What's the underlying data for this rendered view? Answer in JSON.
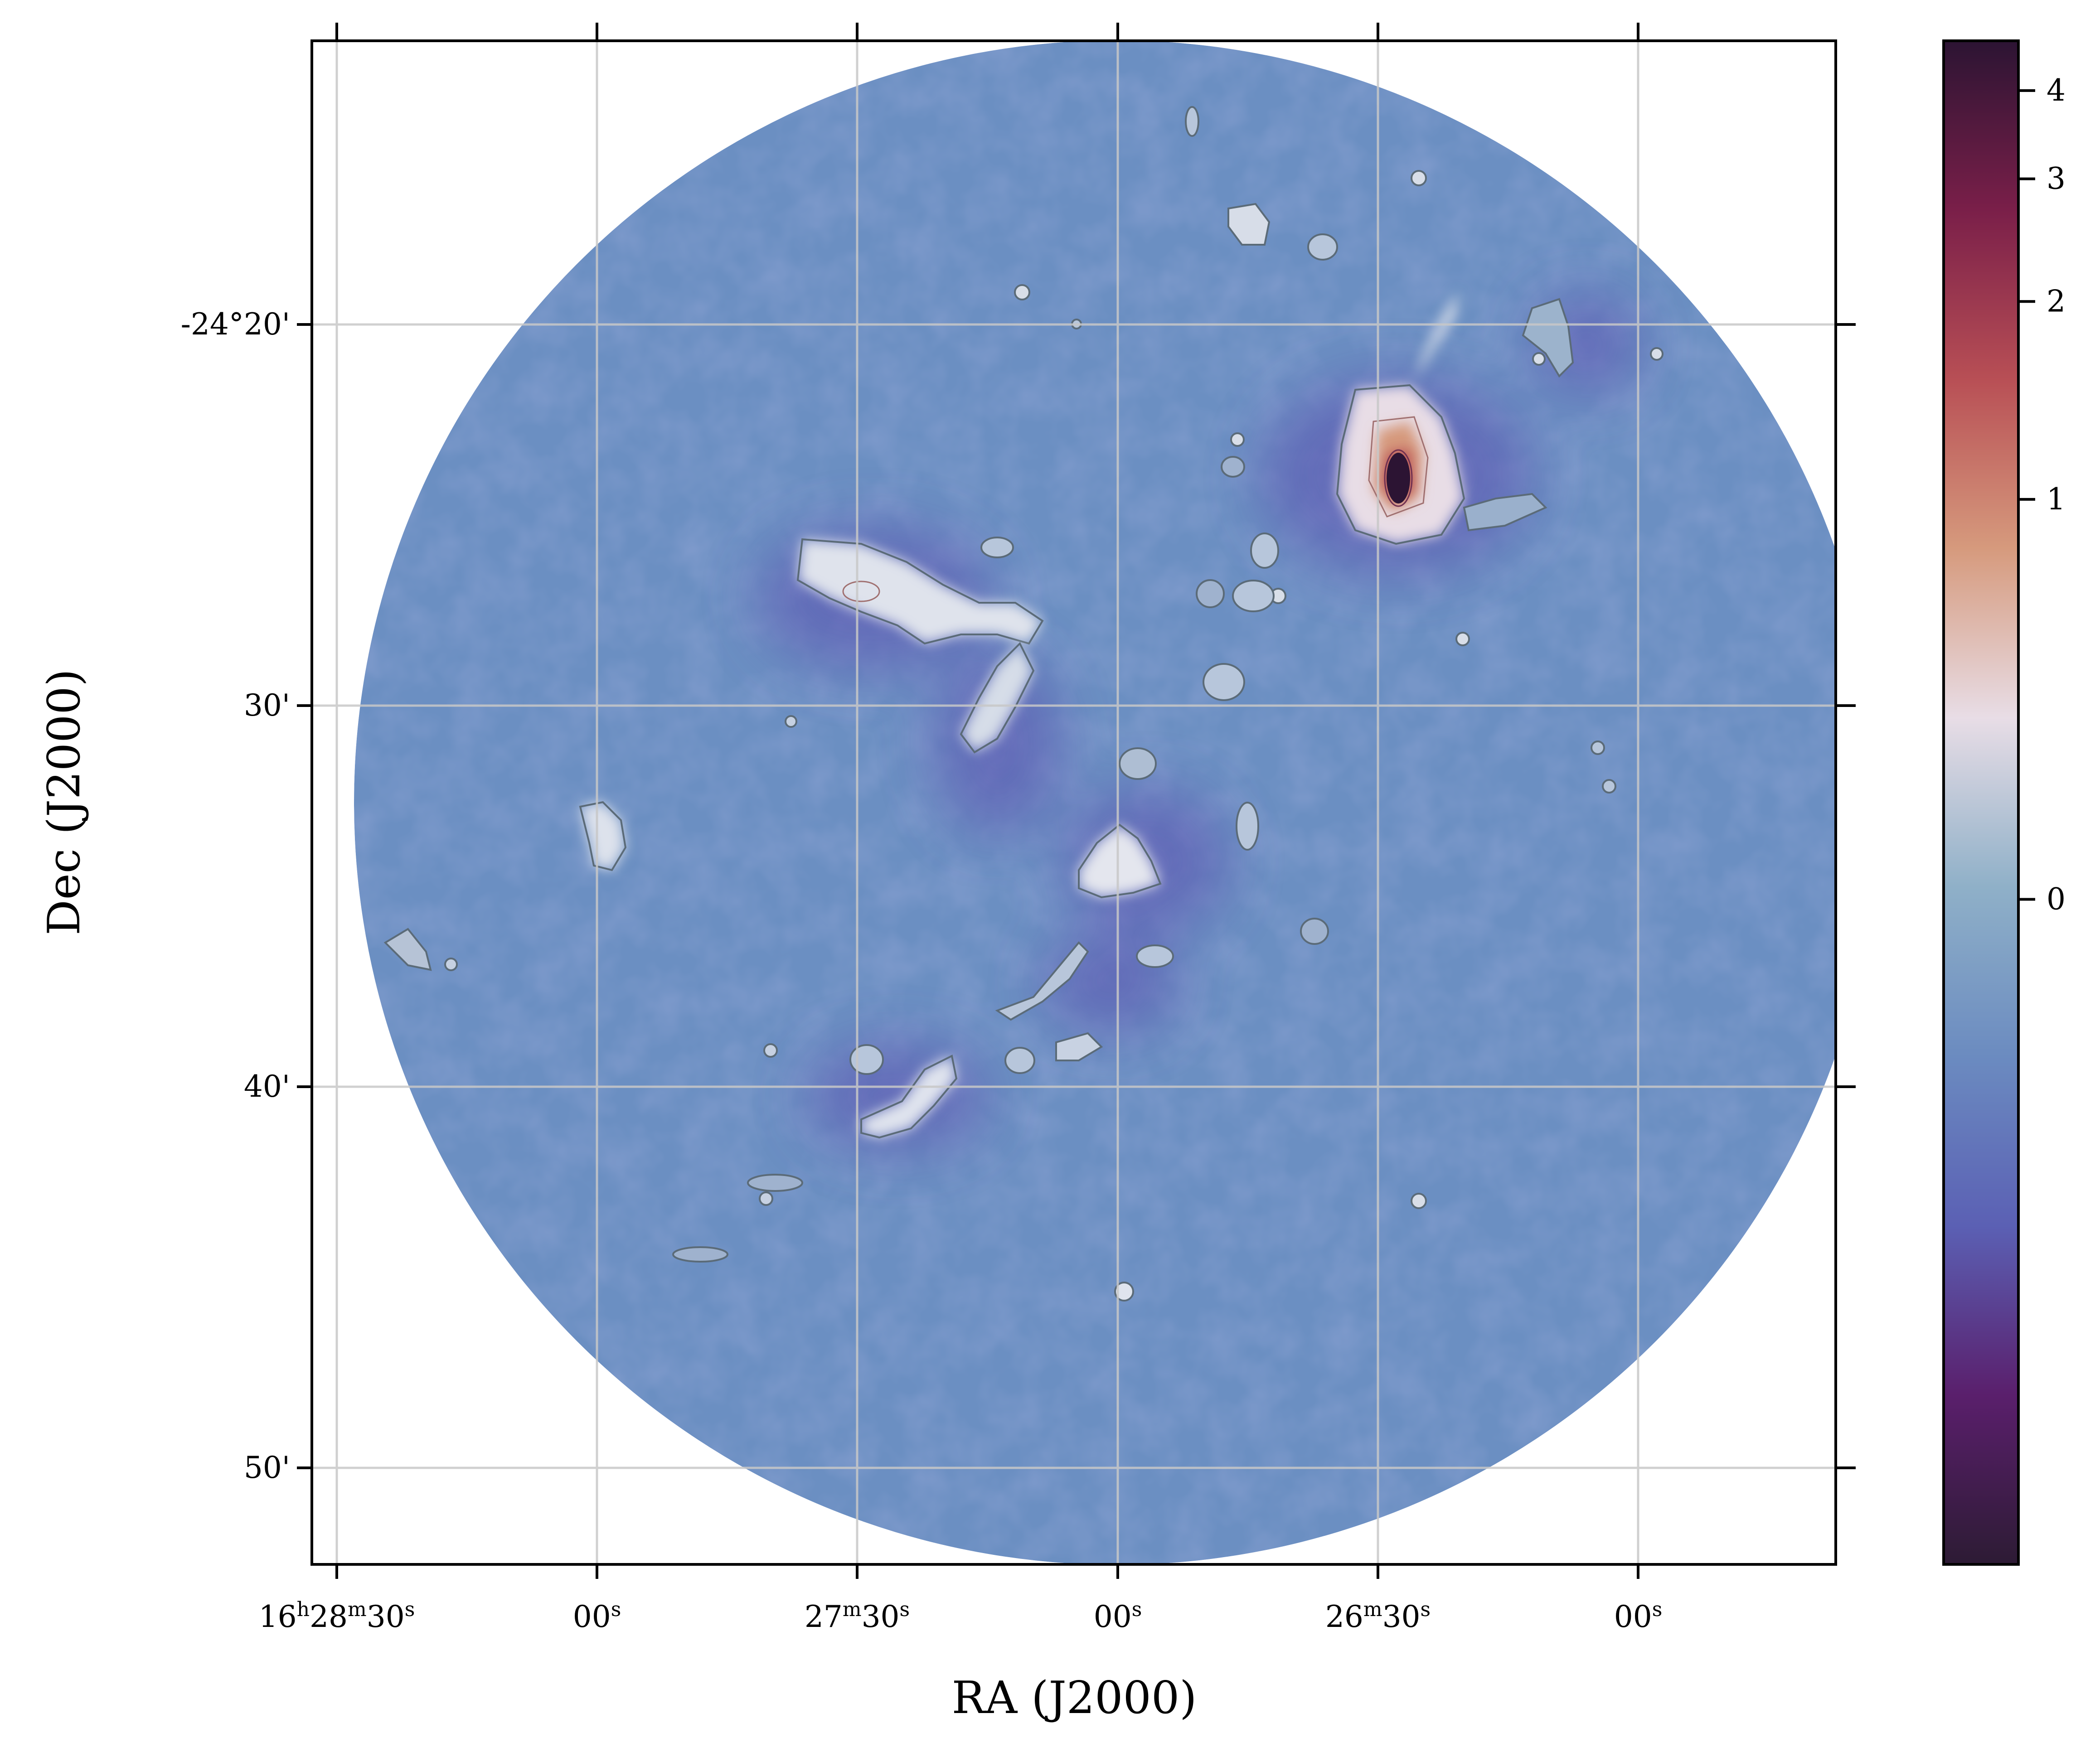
{
  "chart_data": {
    "type": "heatmap",
    "title": "",
    "xlabel": "RA (J2000)",
    "ylabel": "Dec (J2000)",
    "grid": true,
    "colormap": "twilight_shifted",
    "x_ticks": [
      {
        "h": "16",
        "m": "28",
        "s": "30"
      },
      {
        "h": "",
        "m": "",
        "s": "00"
      },
      {
        "h": "",
        "m": "27",
        "s": "30"
      },
      {
        "h": "",
        "m": "",
        "s": "00"
      },
      {
        "h": "",
        "m": "26",
        "s": "30"
      },
      {
        "h": "",
        "m": "",
        "s": "00"
      }
    ],
    "y_ticks": [
      "-24°20'",
      "30'",
      "40'",
      "50'"
    ],
    "colorbar": {
      "ticks": [
        "4",
        "3",
        "2",
        "1",
        "0"
      ],
      "tick_values": [
        4,
        3,
        2,
        1,
        0
      ],
      "range": [
        -2.5,
        4.7
      ],
      "colors": [
        "#2d1b34",
        "#5a1f6c",
        "#5b60b4",
        "#6b8bc0",
        "#8fb0c8",
        "#e8dde6",
        "#d69a7d",
        "#b84f55",
        "#7a1f49",
        "#2c1433"
      ]
    },
    "background_level": 0,
    "sources": [
      {
        "ra": "16h26m24s",
        "dec": "-24°24.3'",
        "peak": 4.5,
        "shape": "filament"
      },
      {
        "ra": "16h27m29s",
        "dec": "-24°27.3'",
        "peak": 0.8,
        "shape": "filament"
      },
      {
        "ra": "16h27m03s",
        "dec": "-24°31.0'",
        "peak": 0.6,
        "shape": "elongated"
      },
      {
        "ra": "16h26m59s",
        "dec": "-24°34.5'",
        "peak": 0.7,
        "shape": "clump"
      },
      {
        "ra": "16h27m59s",
        "dec": "-24°33.5'",
        "peak": 0.6,
        "shape": "clump"
      },
      {
        "ra": "16h27m27s",
        "dec": "-24°40.5'",
        "peak": 0.6,
        "shape": "filament"
      },
      {
        "ra": "16h26m54s",
        "dec": "-24°25.4'",
        "peak": 0.3,
        "shape": "clump"
      },
      {
        "ra": "16h28m20s",
        "dec": "-24°36.5'",
        "peak": 0.2,
        "shape": "clump"
      }
    ]
  }
}
